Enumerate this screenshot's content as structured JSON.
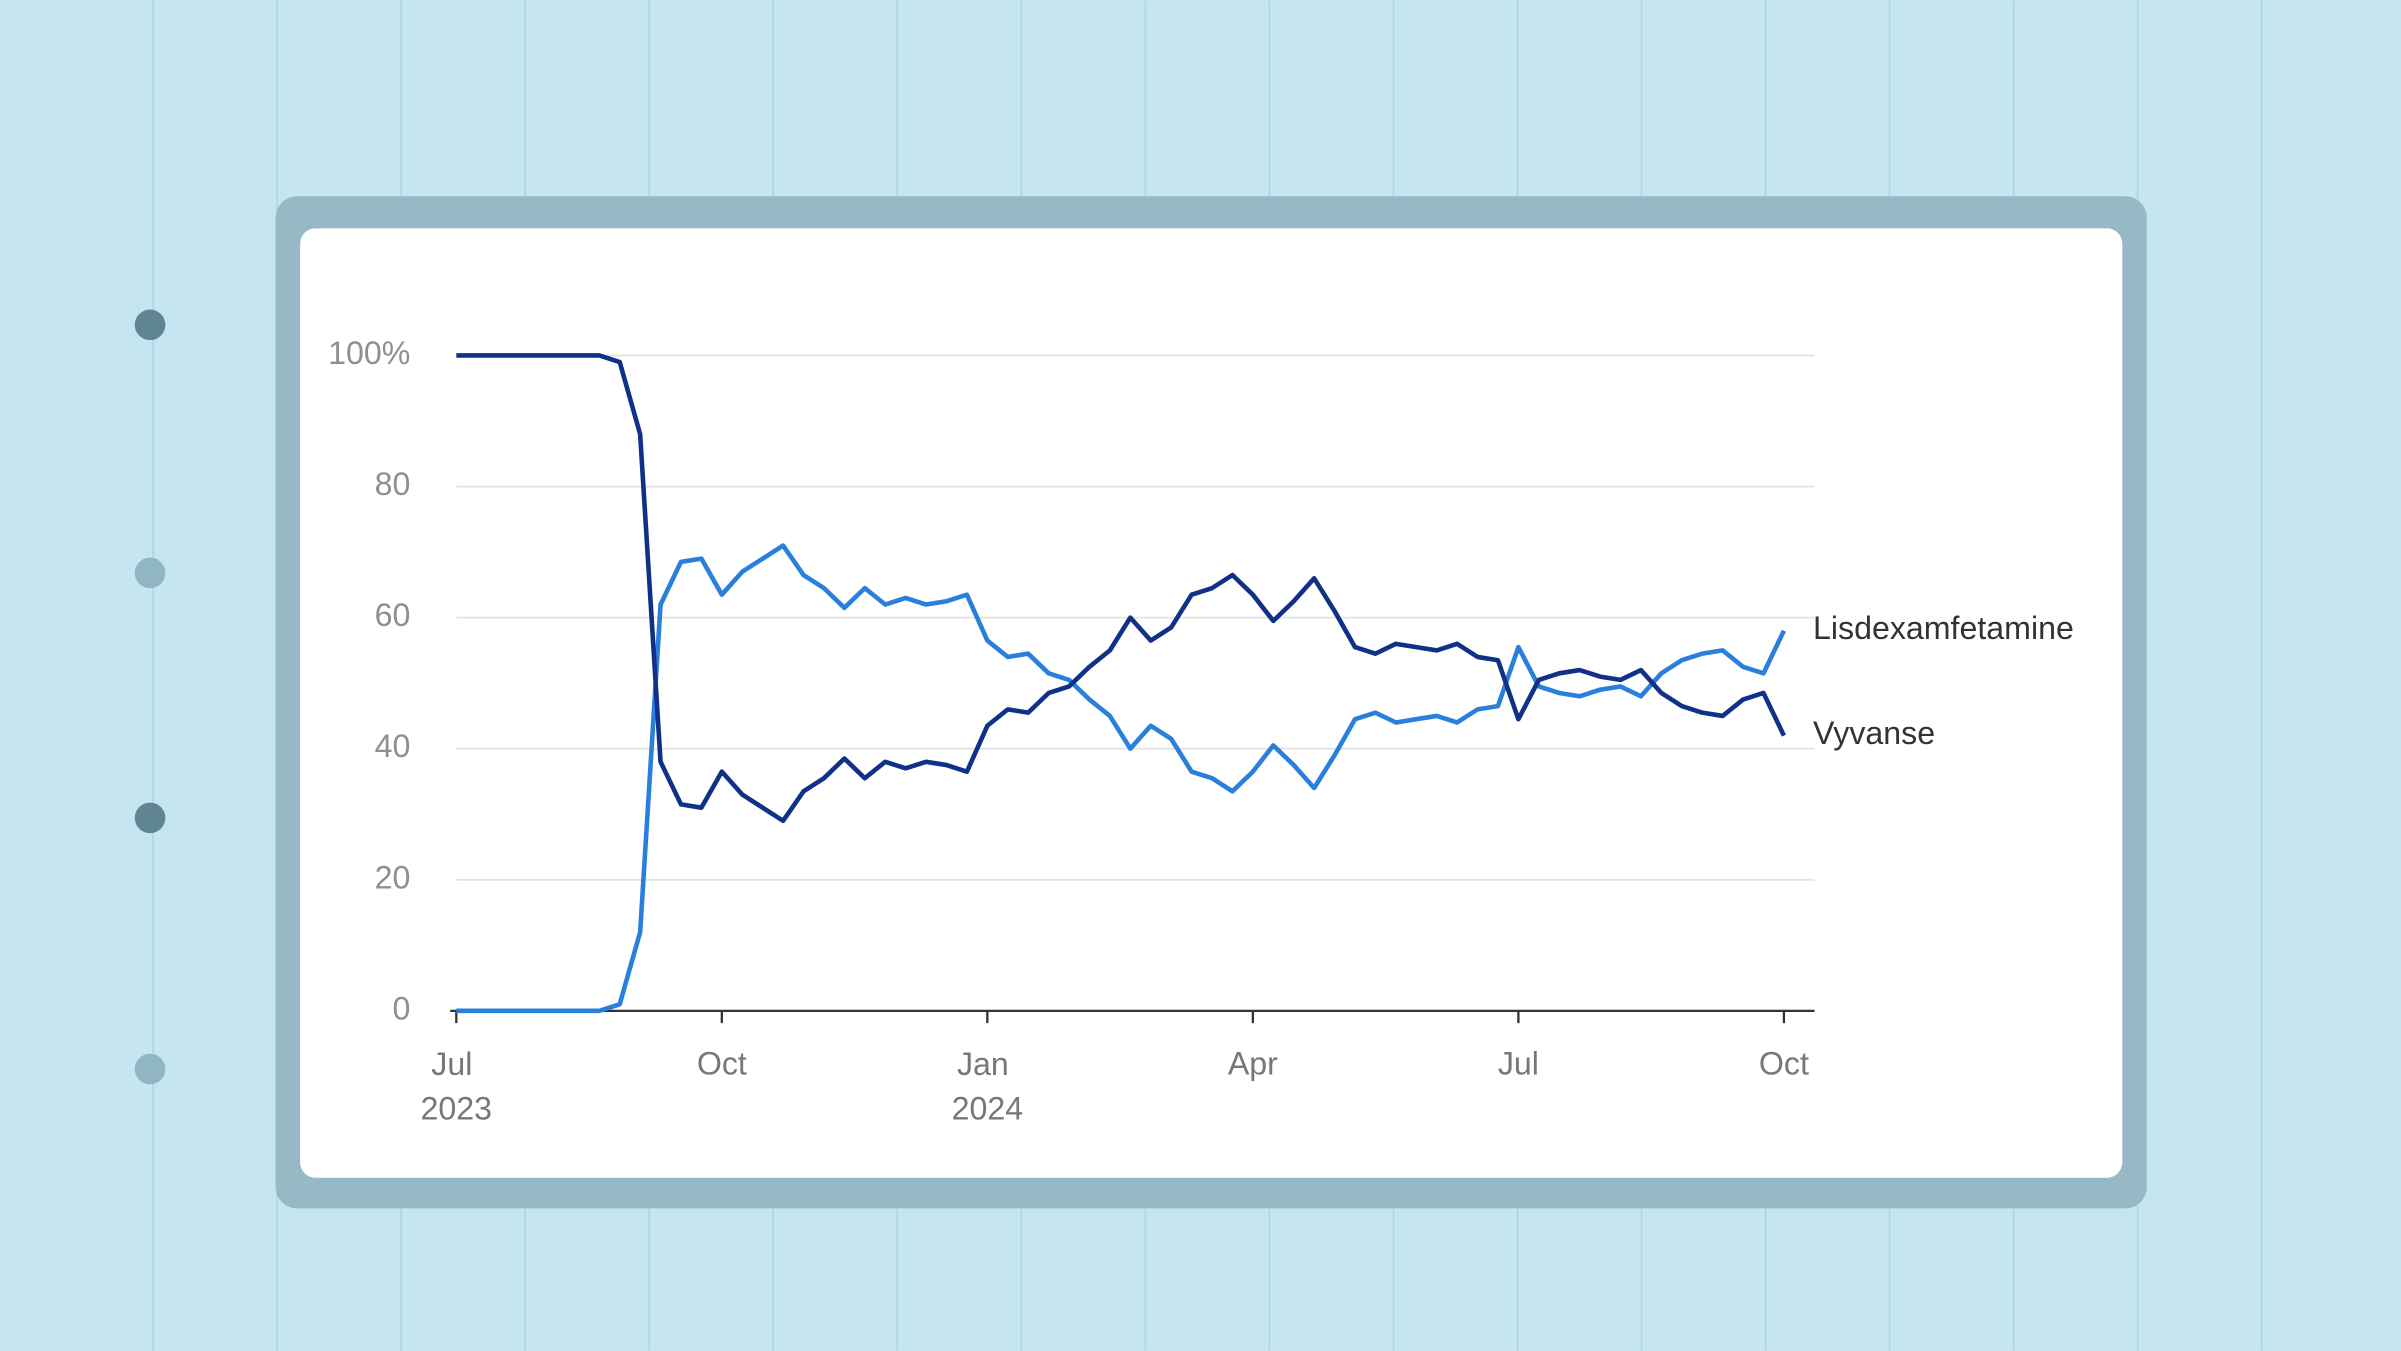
{
  "chart_data": {
    "type": "line",
    "categories": [
      "Jul 2023",
      null,
      null,
      null,
      null,
      null,
      null,
      null,
      null,
      null,
      null,
      null,
      null,
      "Oct",
      null,
      null,
      null,
      null,
      null,
      null,
      null,
      null,
      null,
      null,
      null,
      null,
      "Jan 2024",
      null,
      null,
      null,
      null,
      null,
      null,
      null,
      null,
      null,
      null,
      null,
      null,
      "Apr",
      null,
      null,
      null,
      null,
      null,
      null,
      null,
      null,
      null,
      null,
      null,
      null,
      "Jul",
      null,
      null,
      null,
      null,
      null,
      null,
      null,
      null,
      null,
      null,
      null,
      null,
      "Oct"
    ],
    "series": [
      {
        "name": "Lisdexamfetamine",
        "color": "#2b7fdc",
        "values": [
          0,
          0,
          0,
          0,
          0,
          0,
          0,
          0,
          1,
          12,
          62,
          68.5,
          69,
          63.5,
          67,
          69,
          71,
          66.5,
          64.5,
          61.5,
          64.5,
          62,
          63,
          62,
          62.5,
          63.5,
          56.5,
          54,
          54.5,
          51.5,
          50.5,
          47.5,
          45,
          40,
          43.5,
          41.5,
          36.5,
          35.5,
          33.5,
          36.5,
          40.5,
          37.5,
          34,
          39,
          44.5,
          45.5,
          44,
          44.5,
          45,
          44,
          46,
          46.5,
          55.5,
          49.5,
          48.5,
          48,
          49,
          49.5,
          48,
          51.5,
          53.5,
          54.5,
          55,
          52.5,
          51.5,
          58
        ]
      },
      {
        "name": "Vyvanse",
        "color": "#0f3187",
        "values": [
          100,
          100,
          100,
          100,
          100,
          100,
          100,
          100,
          99,
          88,
          38,
          31.5,
          31,
          36.5,
          33,
          31,
          29,
          33.5,
          35.5,
          38.5,
          35.5,
          38,
          37,
          38,
          37.5,
          36.5,
          43.5,
          46,
          45.5,
          48.5,
          49.5,
          52.5,
          55,
          60,
          56.5,
          58.5,
          63.5,
          64.5,
          66.5,
          63.5,
          59.5,
          62.5,
          66,
          61,
          55.5,
          54.5,
          56,
          55.5,
          55,
          56,
          54,
          53.5,
          44.5,
          50.5,
          51.5,
          52,
          51,
          50.5,
          52,
          48.5,
          46.5,
          45.5,
          45,
          47.5,
          48.5,
          42
        ]
      }
    ],
    "ylim": [
      0,
      100
    ],
    "yticks": [
      0,
      20,
      40,
      60,
      80,
      {
        "value": 100,
        "label": "100%"
      }
    ],
    "grid": true
  }
}
